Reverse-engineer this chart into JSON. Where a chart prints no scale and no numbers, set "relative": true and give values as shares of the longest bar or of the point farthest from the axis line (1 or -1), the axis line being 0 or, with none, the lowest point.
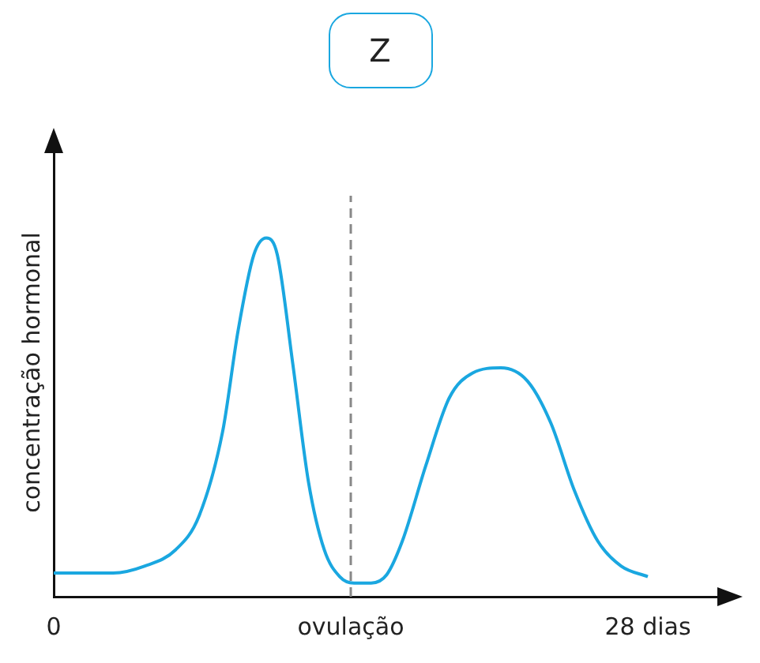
{
  "chart_data": {
    "type": "line",
    "title": "Z",
    "ylabel": "concentração hormonal",
    "relative": true,
    "xlim": [
      0,
      31.5
    ],
    "xticks": [
      {
        "value": 0,
        "label": "0"
      },
      {
        "value": 14,
        "label": "ovulação"
      },
      {
        "value": 28,
        "label": "28 dias"
      }
    ],
    "series": [
      {
        "color": "#1aa7e0",
        "x": [
          0,
          2.8,
          4.27,
          5.75,
          6.85,
          7.96,
          8.69,
          9.43,
          10.02,
          10.54,
          11.27,
          12.01,
          12.75,
          13.48,
          14.15,
          14.96,
          15.69,
          16.43,
          17.54,
          18.64,
          19.75,
          21.07,
          22.33,
          23.43,
          24.54,
          25.64,
          26.75,
          28
        ],
        "values": [
          0.066,
          0.066,
          0.085,
          0.131,
          0.225,
          0.46,
          0.742,
          0.953,
          1,
          0.953,
          0.648,
          0.319,
          0.131,
          0.056,
          0.038,
          0.038,
          0.061,
          0.155,
          0.366,
          0.554,
          0.624,
          0.638,
          0.601,
          0.484,
          0.296,
          0.155,
          0.085,
          0.056
        ]
      }
    ],
    "ref_lines": [
      {
        "axis": "x",
        "value": 14,
        "color": "#888888",
        "line_style": "dashed"
      }
    ],
    "grid": false,
    "legend": false,
    "marker": "none",
    "line_style": "solid"
  }
}
